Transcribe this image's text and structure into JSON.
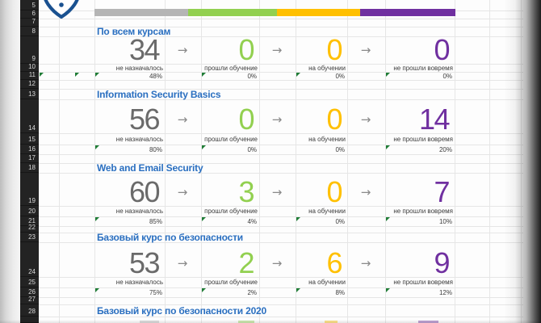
{
  "theme": {
    "accent_blue": "#2a6fc0",
    "gray_value": "#6a6a6a",
    "green": "#92d050",
    "yellow": "#ffc000",
    "purple": "#7030a0",
    "bar_gray": "#b5b5b5",
    "indicator_green": "#1f7d36"
  },
  "glyphs": {
    "arrow": "→"
  },
  "sheet": {
    "row_headers": [
      "5",
      "6",
      "7",
      "8",
      "9",
      "10",
      "11",
      "12",
      "13",
      "14",
      "15",
      "16",
      "17",
      "18",
      "19",
      "20",
      "21",
      "22",
      "23",
      "24",
      "25",
      "26",
      "27",
      "28"
    ]
  },
  "legend_bar": {
    "segments": [
      {
        "name": "not-assigned",
        "color": "#b5b5b5"
      },
      {
        "name": "completed",
        "color": "#92d050"
      },
      {
        "name": "in-training",
        "color": "#ffc000"
      },
      {
        "name": "overdue",
        "color": "#7030a0"
      }
    ]
  },
  "metrics": [
    {
      "key": "not_assigned",
      "label": "не назначалось",
      "color": "#6a6a6a"
    },
    {
      "key": "completed",
      "label": "прошли обучение",
      "color": "#92d050"
    },
    {
      "key": "in_training",
      "label": "на обучении",
      "color": "#ffc000"
    },
    {
      "key": "overdue",
      "label": "не прошли вовремя",
      "color": "#7030a0"
    }
  ],
  "sections": [
    {
      "title": "По всем курсам",
      "values": [
        34,
        0,
        0,
        0
      ],
      "percents": [
        "48%",
        "0%",
        "0%",
        "0%"
      ],
      "indicator_triangles": [
        true,
        true,
        true,
        true
      ],
      "margin_indicators": 2
    },
    {
      "title": "Information Security Basics",
      "values": [
        56,
        0,
        0,
        14
      ],
      "percents": [
        "80%",
        "0%",
        "0%",
        "20%"
      ],
      "indicator_triangles": [
        true,
        true,
        false,
        true
      ],
      "margin_indicators": 0
    },
    {
      "title": "Web and Email Security",
      "values": [
        60,
        3,
        0,
        7
      ],
      "percents": [
        "85%",
        "4%",
        "0%",
        "10%"
      ],
      "indicator_triangles": [
        true,
        true,
        true,
        true
      ],
      "margin_indicators": 0
    },
    {
      "title": "Базовый курс по безопасности",
      "values": [
        53,
        2,
        6,
        9
      ],
      "percents": [
        "75%",
        "2%",
        "8%",
        "12%"
      ],
      "indicator_triangles": [
        true,
        true,
        true,
        true
      ],
      "margin_indicators": 0
    },
    {
      "title": "Базовый курс по безопасности 2020",
      "values": null
    }
  ]
}
